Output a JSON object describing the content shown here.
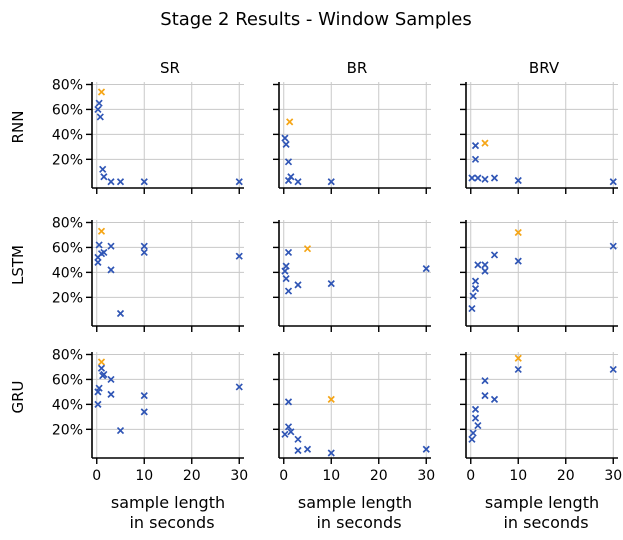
{
  "figure": {
    "title": "Stage 2 Results - Window Samples",
    "xlabel_line1": "sample length",
    "xlabel_line2": "in seconds",
    "colors": {
      "normal": "#2f55b5",
      "best": "#f5a516",
      "grid": "#c8c8c8",
      "axis": "#000000"
    }
  },
  "chart_data": {
    "type": "scatter",
    "title": "Stage 2 Results - Window Samples",
    "columns": [
      "SR",
      "BR",
      "BRV"
    ],
    "rows": [
      "RNN",
      "LSTM",
      "GRU"
    ],
    "xlim": [
      -1,
      31
    ],
    "ylim": [
      -3,
      82
    ],
    "xticks": [
      0,
      10,
      20,
      30
    ],
    "xtick_labels": [
      "0",
      "10",
      "20",
      "30"
    ],
    "yticks": [
      20,
      40,
      60,
      80
    ],
    "ytick_labels": [
      "20%",
      "40%",
      "60%",
      "80%"
    ],
    "grid": true,
    "marker": "x",
    "panels": [
      {
        "row": "RNN",
        "col": "SR",
        "points": [
          [
            0.25,
            60
          ],
          [
            0.5,
            65
          ],
          [
            0.75,
            54
          ],
          [
            1,
            74
          ],
          [
            1.25,
            12
          ],
          [
            1.5,
            6
          ],
          [
            3,
            2
          ],
          [
            5,
            2
          ],
          [
            10,
            2
          ],
          [
            30,
            2
          ]
        ],
        "best_index": 3
      },
      {
        "row": "RNN",
        "col": "BR",
        "points": [
          [
            0.25,
            37
          ],
          [
            0.5,
            32
          ],
          [
            1,
            18
          ],
          [
            1,
            3
          ],
          [
            1.25,
            50
          ],
          [
            1.5,
            6
          ],
          [
            3,
            2
          ],
          [
            10,
            2
          ]
        ],
        "best_index": 4
      },
      {
        "row": "RNN",
        "col": "BRV",
        "points": [
          [
            0.25,
            5
          ],
          [
            1,
            31
          ],
          [
            1,
            20
          ],
          [
            1.5,
            5
          ],
          [
            3,
            33
          ],
          [
            3,
            4
          ],
          [
            5,
            5
          ],
          [
            10,
            3
          ],
          [
            30,
            2
          ]
        ],
        "best_index": 4
      },
      {
        "row": "LSTM",
        "col": "SR",
        "points": [
          [
            0.25,
            48
          ],
          [
            0.25,
            52
          ],
          [
            0.5,
            62
          ],
          [
            1,
            73
          ],
          [
            1,
            55
          ],
          [
            1.5,
            56
          ],
          [
            3,
            61
          ],
          [
            3,
            42
          ],
          [
            5,
            7
          ],
          [
            10,
            61
          ],
          [
            10,
            56
          ],
          [
            30,
            53
          ]
        ],
        "best_index": 3
      },
      {
        "row": "LSTM",
        "col": "BR",
        "points": [
          [
            0.25,
            41
          ],
          [
            0.5,
            45
          ],
          [
            0.5,
            35
          ],
          [
            1,
            56
          ],
          [
            1,
            25
          ],
          [
            3,
            30
          ],
          [
            5,
            59
          ],
          [
            10,
            31
          ],
          [
            30,
            43
          ]
        ],
        "best_index": 6
      },
      {
        "row": "LSTM",
        "col": "BRV",
        "points": [
          [
            0.25,
            11
          ],
          [
            0.5,
            21
          ],
          [
            1,
            33
          ],
          [
            1,
            27
          ],
          [
            1.5,
            46
          ],
          [
            3,
            46
          ],
          [
            3,
            41
          ],
          [
            5,
            54
          ],
          [
            10,
            72
          ],
          [
            10,
            49
          ],
          [
            30,
            61
          ]
        ],
        "best_index": 8
      },
      {
        "row": "GRU",
        "col": "SR",
        "points": [
          [
            0.25,
            40
          ],
          [
            0.25,
            50
          ],
          [
            0.5,
            53
          ],
          [
            1,
            74
          ],
          [
            1,
            69
          ],
          [
            1.25,
            63
          ],
          [
            1.5,
            64
          ],
          [
            3,
            60
          ],
          [
            3,
            48
          ],
          [
            5,
            19
          ],
          [
            10,
            47
          ],
          [
            10,
            34
          ],
          [
            30,
            54
          ]
        ],
        "best_index": 3
      },
      {
        "row": "GRU",
        "col": "BR",
        "points": [
          [
            0.25,
            16
          ],
          [
            1,
            42
          ],
          [
            1,
            22
          ],
          [
            1.5,
            18
          ],
          [
            3,
            12
          ],
          [
            3,
            3
          ],
          [
            5,
            4
          ],
          [
            10,
            44
          ],
          [
            10,
            1
          ],
          [
            30,
            4
          ]
        ],
        "best_index": 7
      },
      {
        "row": "GRU",
        "col": "BRV",
        "points": [
          [
            0.25,
            12
          ],
          [
            0.5,
            17
          ],
          [
            1,
            36
          ],
          [
            1,
            29
          ],
          [
            1.5,
            23
          ],
          [
            3,
            59
          ],
          [
            3,
            47
          ],
          [
            5,
            44
          ],
          [
            10,
            77
          ],
          [
            10,
            68
          ],
          [
            30,
            68
          ]
        ],
        "best_index": 8
      }
    ]
  }
}
